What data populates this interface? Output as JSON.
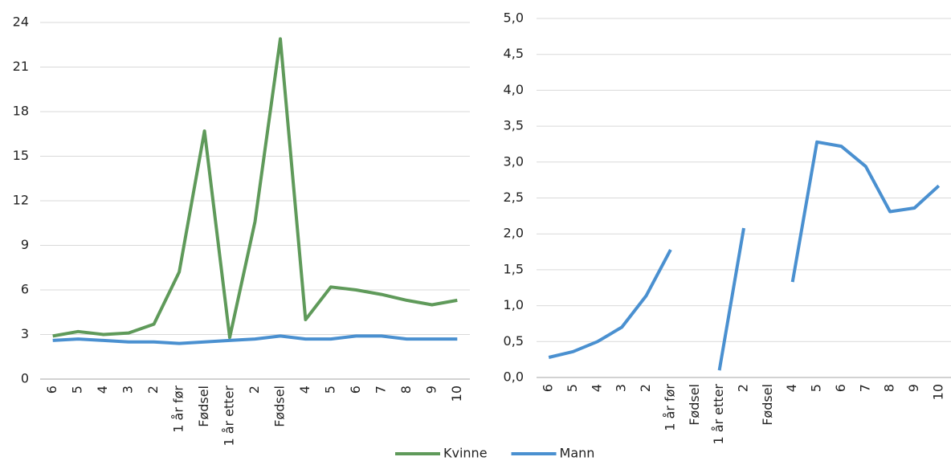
{
  "chart_data": [
    {
      "type": "line",
      "categories": [
        "6",
        "5",
        "4",
        "3",
        "2",
        "1 år før",
        "Fødsel",
        "1 år etter",
        "2",
        "Fødsel",
        "4",
        "5",
        "6",
        "7",
        "8",
        "9",
        "10"
      ],
      "series": [
        {
          "name": "Kvinne",
          "color": "#5f9a5a",
          "values": [
            2.9,
            3.2,
            3.0,
            3.1,
            3.7,
            7.2,
            16.7,
            2.8,
            10.6,
            22.9,
            4.0,
            6.2,
            6.0,
            5.7,
            5.3,
            5.0,
            5.3
          ]
        },
        {
          "name": "Mann",
          "color": "#4a90d0",
          "values": [
            2.6,
            2.7,
            2.6,
            2.5,
            2.5,
            2.4,
            2.5,
            2.6,
            2.7,
            2.9,
            2.7,
            2.7,
            2.9,
            2.9,
            2.7,
            2.7,
            2.7
          ]
        }
      ],
      "ylim": [
        0,
        24
      ],
      "yticks": [
        0,
        3,
        6,
        9,
        12,
        15,
        18,
        21,
        24
      ],
      "grid": true
    },
    {
      "type": "line",
      "categories": [
        "6",
        "5",
        "4",
        "3",
        "2",
        "1 år før",
        "Fødsel",
        "1 år etter",
        "2",
        "Fødsel",
        "4",
        "5",
        "6",
        "7",
        "8",
        "9",
        "10"
      ],
      "series": [
        {
          "color": "#4a90d0",
          "values": [
            0.28,
            0.36,
            0.5,
            0.7,
            1.14,
            1.78,
            null,
            0.1,
            2.08,
            null,
            1.33,
            3.28,
            3.22,
            2.94,
            2.31,
            2.36,
            2.67
          ]
        }
      ],
      "ylim": [
        0,
        5
      ],
      "yticks": [
        {
          "value": 0,
          "label": "0,0"
        },
        {
          "value": 0.5,
          "label": "0,5"
        },
        {
          "value": 1,
          "label": "1,0"
        },
        {
          "value": 1.5,
          "label": "1,5"
        },
        {
          "value": 2,
          "label": "2,0"
        },
        {
          "value": 2.5,
          "label": "2,5"
        },
        {
          "value": 3,
          "label": "3,0"
        },
        {
          "value": 3.5,
          "label": "3,5"
        },
        {
          "value": 4,
          "label": "4,0"
        },
        {
          "value": 4.5,
          "label": "4,5"
        },
        {
          "value": 5,
          "label": "5,0"
        }
      ],
      "grid": true
    }
  ]
}
